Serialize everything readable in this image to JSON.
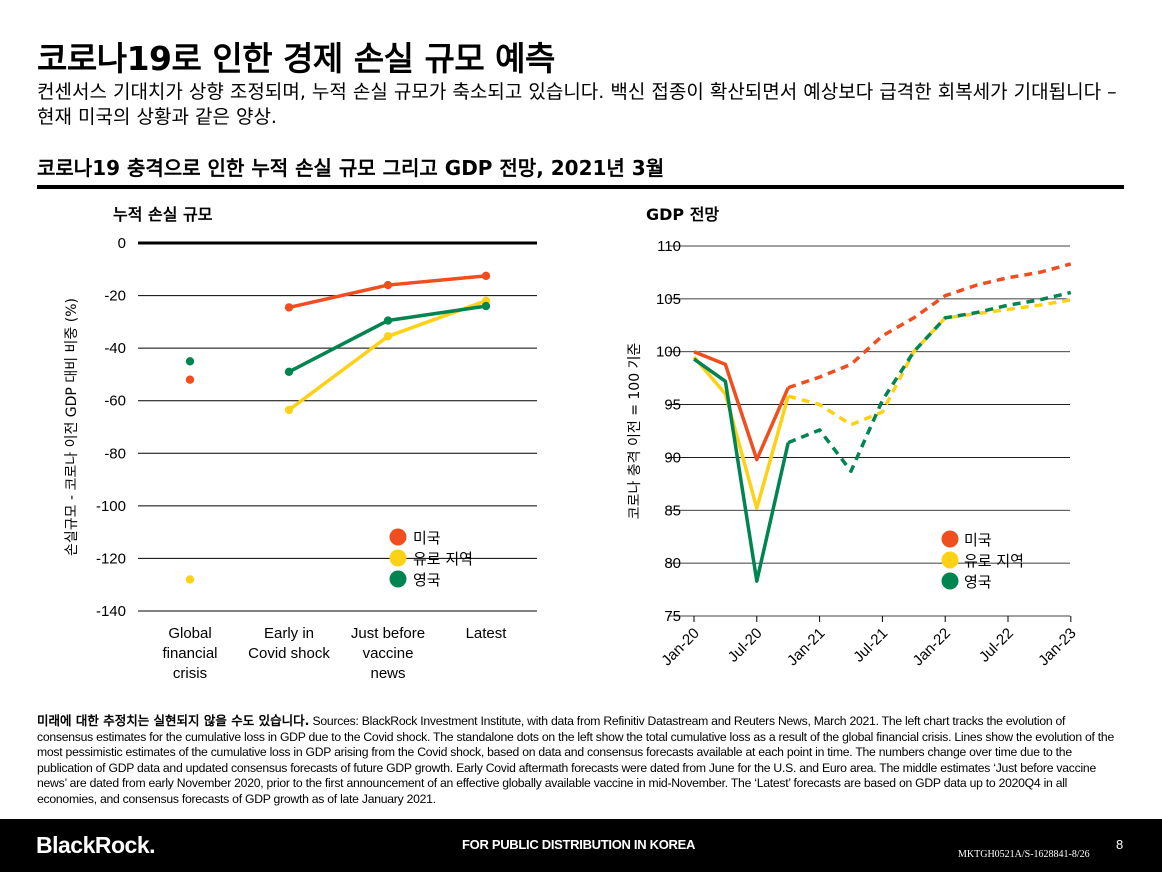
{
  "title": "코로나19로 인한 경제 손실 규모 예측",
  "subtitle": "컨센서스 기대치가 상향 조정되며, 누적 손실 규모가 축소되고 있습니다. 백신 접종이 확산되면서 예상보다 급격한 회복세가 기대됩니다 – 현재 미국의 상황과 같은 양상.",
  "chart_title": "코로나19 충격으로 인한 누적 손실 규모 그리고 GDP 전망, 2021년 3월",
  "colors": {
    "us": "#f04e1e",
    "euro": "#fcd116",
    "uk": "#008450"
  },
  "chart_data": [
    {
      "type": "line",
      "title": "누적 손실 규모",
      "ylabel": "손실규모 - 코로나 이전 GDP 대비 비중 (%)",
      "ylim": [
        -140,
        0
      ],
      "yticks": [
        "0",
        "-20",
        "-40",
        "-60",
        "-80",
        "-100",
        "-120",
        "-140"
      ],
      "categories": [
        "Global financial crisis",
        "Early in Covid shock",
        "Just before vaccine news",
        "Latest"
      ],
      "category_lines": [
        [
          "Global",
          "financial",
          "crisis"
        ],
        [
          "Early in",
          "Covid shock"
        ],
        [
          "Just before",
          "vaccine",
          "news"
        ],
        [
          "Latest"
        ]
      ],
      "series": [
        {
          "name": "미국",
          "key": "us",
          "values": [
            -52,
            -24.5,
            -16,
            -12.5
          ]
        },
        {
          "name": "유로 지역",
          "key": "euro",
          "values": [
            -128,
            -63.5,
            -35.5,
            -22
          ]
        },
        {
          "name": "영국",
          "key": "uk",
          "values": [
            -45,
            -49,
            -29.5,
            -24
          ]
        }
      ],
      "note": "First point (Global financial crisis) drawn as standalone dot; lines connect remaining points."
    },
    {
      "type": "line",
      "title": "GDP 전망",
      "ylabel": "코로나 충격 이전 = 100 기준",
      "ylim": [
        75,
        110
      ],
      "yticks": [
        "110",
        "105",
        "100",
        "95",
        "90",
        "85",
        "80",
        "75"
      ],
      "xticks": [
        "Jan-20",
        "Jul-20",
        "Jan-21",
        "Jul-21",
        "Jan-22",
        "Jul-22",
        "Jan-23"
      ],
      "x": [
        "2020Q1",
        "2020Q2",
        "2020Q3",
        "2020Q4",
        "2021Q1",
        "2021Q2",
        "2021Q3",
        "2021Q4",
        "2022Q1",
        "2022Q2",
        "2022Q3",
        "2022Q4",
        "2023Q1"
      ],
      "forecast_start": "2020Q4",
      "series": [
        {
          "name": "미국",
          "key": "us",
          "values": [
            100,
            98.8,
            89.8,
            96.6,
            97.6,
            98.8,
            101.5,
            103.2,
            105.3,
            106.3,
            107,
            107.5,
            108.3
          ]
        },
        {
          "name": "유로 지역",
          "key": "euro",
          "values": [
            99.5,
            96,
            85.2,
            95.8,
            95,
            93.1,
            94.3,
            100,
            103.2,
            103.6,
            104,
            104.4,
            104.9
          ]
        },
        {
          "name": "영국",
          "key": "uk",
          "values": [
            99.3,
            97.2,
            78.3,
            91.4,
            92.6,
            88.7,
            95.4,
            100,
            103.2,
            103.7,
            104.4,
            104.9,
            105.6
          ]
        }
      ]
    }
  ],
  "source_bold": "미래에 대한 추정치는 실현되지 않을 수도 있습니다.",
  "source_text": " Sources: BlackRock Investment Institute, with data from Refinitiv Datastream and Reuters News, March 2021. The left chart tracks the evolution of consensus estimates for the cumulative loss in GDP due to the Covid shock. The standalone dots on the left show the total cumulative loss as a result of the global financial crisis.   Lines show the evolution of the most pessimistic estimates of the cumulative loss in GDP arising from the Covid shock, based on data and consensus forecasts available at each point in time. The numbers change over time due to the publication of GDP data and updated consensus forecasts of future GDP growth. Early Covid aftermath forecasts were dated from June for the U.S. and Euro area. The middle estimates ‘Just before vaccine news’ are dated from early November 2020, prior to the first announcement of an effective globally available vaccine in mid-November. The ‘Latest’ forecasts are based on GDP data up to 2020Q4 in all economies, and consensus forecasts of GDP growth as of late January 2021.",
  "footer": {
    "logo": "BlackRock.",
    "distribution": "FOR PUBLIC DISTRIBUTION IN KOREA",
    "code": "MKTGH0521A/S-1628841-8/26",
    "page": "8"
  }
}
